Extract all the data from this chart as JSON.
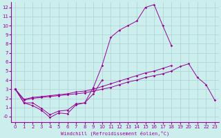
{
  "xlabel": "Windchill (Refroidissement éolien,°C)",
  "background_color": "#cceeed",
  "grid_color": "#aad4d3",
  "line_color": "#990099",
  "xlim": [
    -0.5,
    23.5
  ],
  "ylim": [
    -0.6,
    12.6
  ],
  "xticks": [
    0,
    1,
    2,
    3,
    4,
    5,
    6,
    7,
    8,
    9,
    10,
    11,
    12,
    13,
    14,
    15,
    16,
    17,
    18,
    19,
    20,
    21,
    22,
    23
  ],
  "yticks": [
    0,
    1,
    2,
    3,
    4,
    5,
    6,
    7,
    8,
    9,
    10,
    11,
    12
  ],
  "ytick_labels": [
    "-0",
    "1",
    "2",
    "3",
    "4",
    "5",
    "6",
    "7",
    "8",
    "9",
    "10",
    "11",
    "12"
  ],
  "series1_x": [
    0,
    1,
    2,
    3,
    4,
    5,
    6,
    7,
    8,
    9,
    10,
    11,
    12,
    13,
    14,
    15,
    16,
    17,
    18
  ],
  "series1_y": [
    3.0,
    1.5,
    1.2,
    0.7,
    -0.1,
    0.4,
    0.3,
    1.3,
    1.5,
    3.2,
    5.6,
    8.7,
    9.5,
    10.0,
    10.5,
    12.0,
    12.3,
    10.0,
    7.8
  ],
  "series2_x": [
    0,
    1,
    2,
    3,
    4,
    5,
    6,
    7,
    8,
    9,
    10
  ],
  "series2_y": [
    3.0,
    1.5,
    1.5,
    0.9,
    0.2,
    0.6,
    0.7,
    1.4,
    1.5,
    2.5,
    4.0
  ],
  "series3_x": [
    0,
    1,
    2,
    3,
    4,
    5,
    6,
    7,
    8,
    9,
    10,
    11,
    12,
    13,
    14,
    15,
    16,
    17,
    18,
    19,
    20,
    21,
    22,
    23
  ],
  "series3_y": [
    3.0,
    1.8,
    2.0,
    2.1,
    2.2,
    2.3,
    2.4,
    2.5,
    2.6,
    2.8,
    3.0,
    3.2,
    3.5,
    3.8,
    4.0,
    4.3,
    4.5,
    4.7,
    5.0,
    5.5,
    5.8,
    4.3,
    3.5,
    1.8
  ],
  "series4_x": [
    0,
    1,
    2,
    3,
    4,
    5,
    6,
    7,
    8,
    9,
    10,
    11,
    12,
    13,
    14,
    15,
    16,
    17,
    18
  ],
  "series4_y": [
    3.0,
    1.9,
    2.1,
    2.2,
    2.3,
    2.4,
    2.5,
    2.7,
    2.8,
    3.0,
    3.3,
    3.6,
    3.9,
    4.2,
    4.5,
    4.8,
    5.0,
    5.3,
    5.6
  ]
}
